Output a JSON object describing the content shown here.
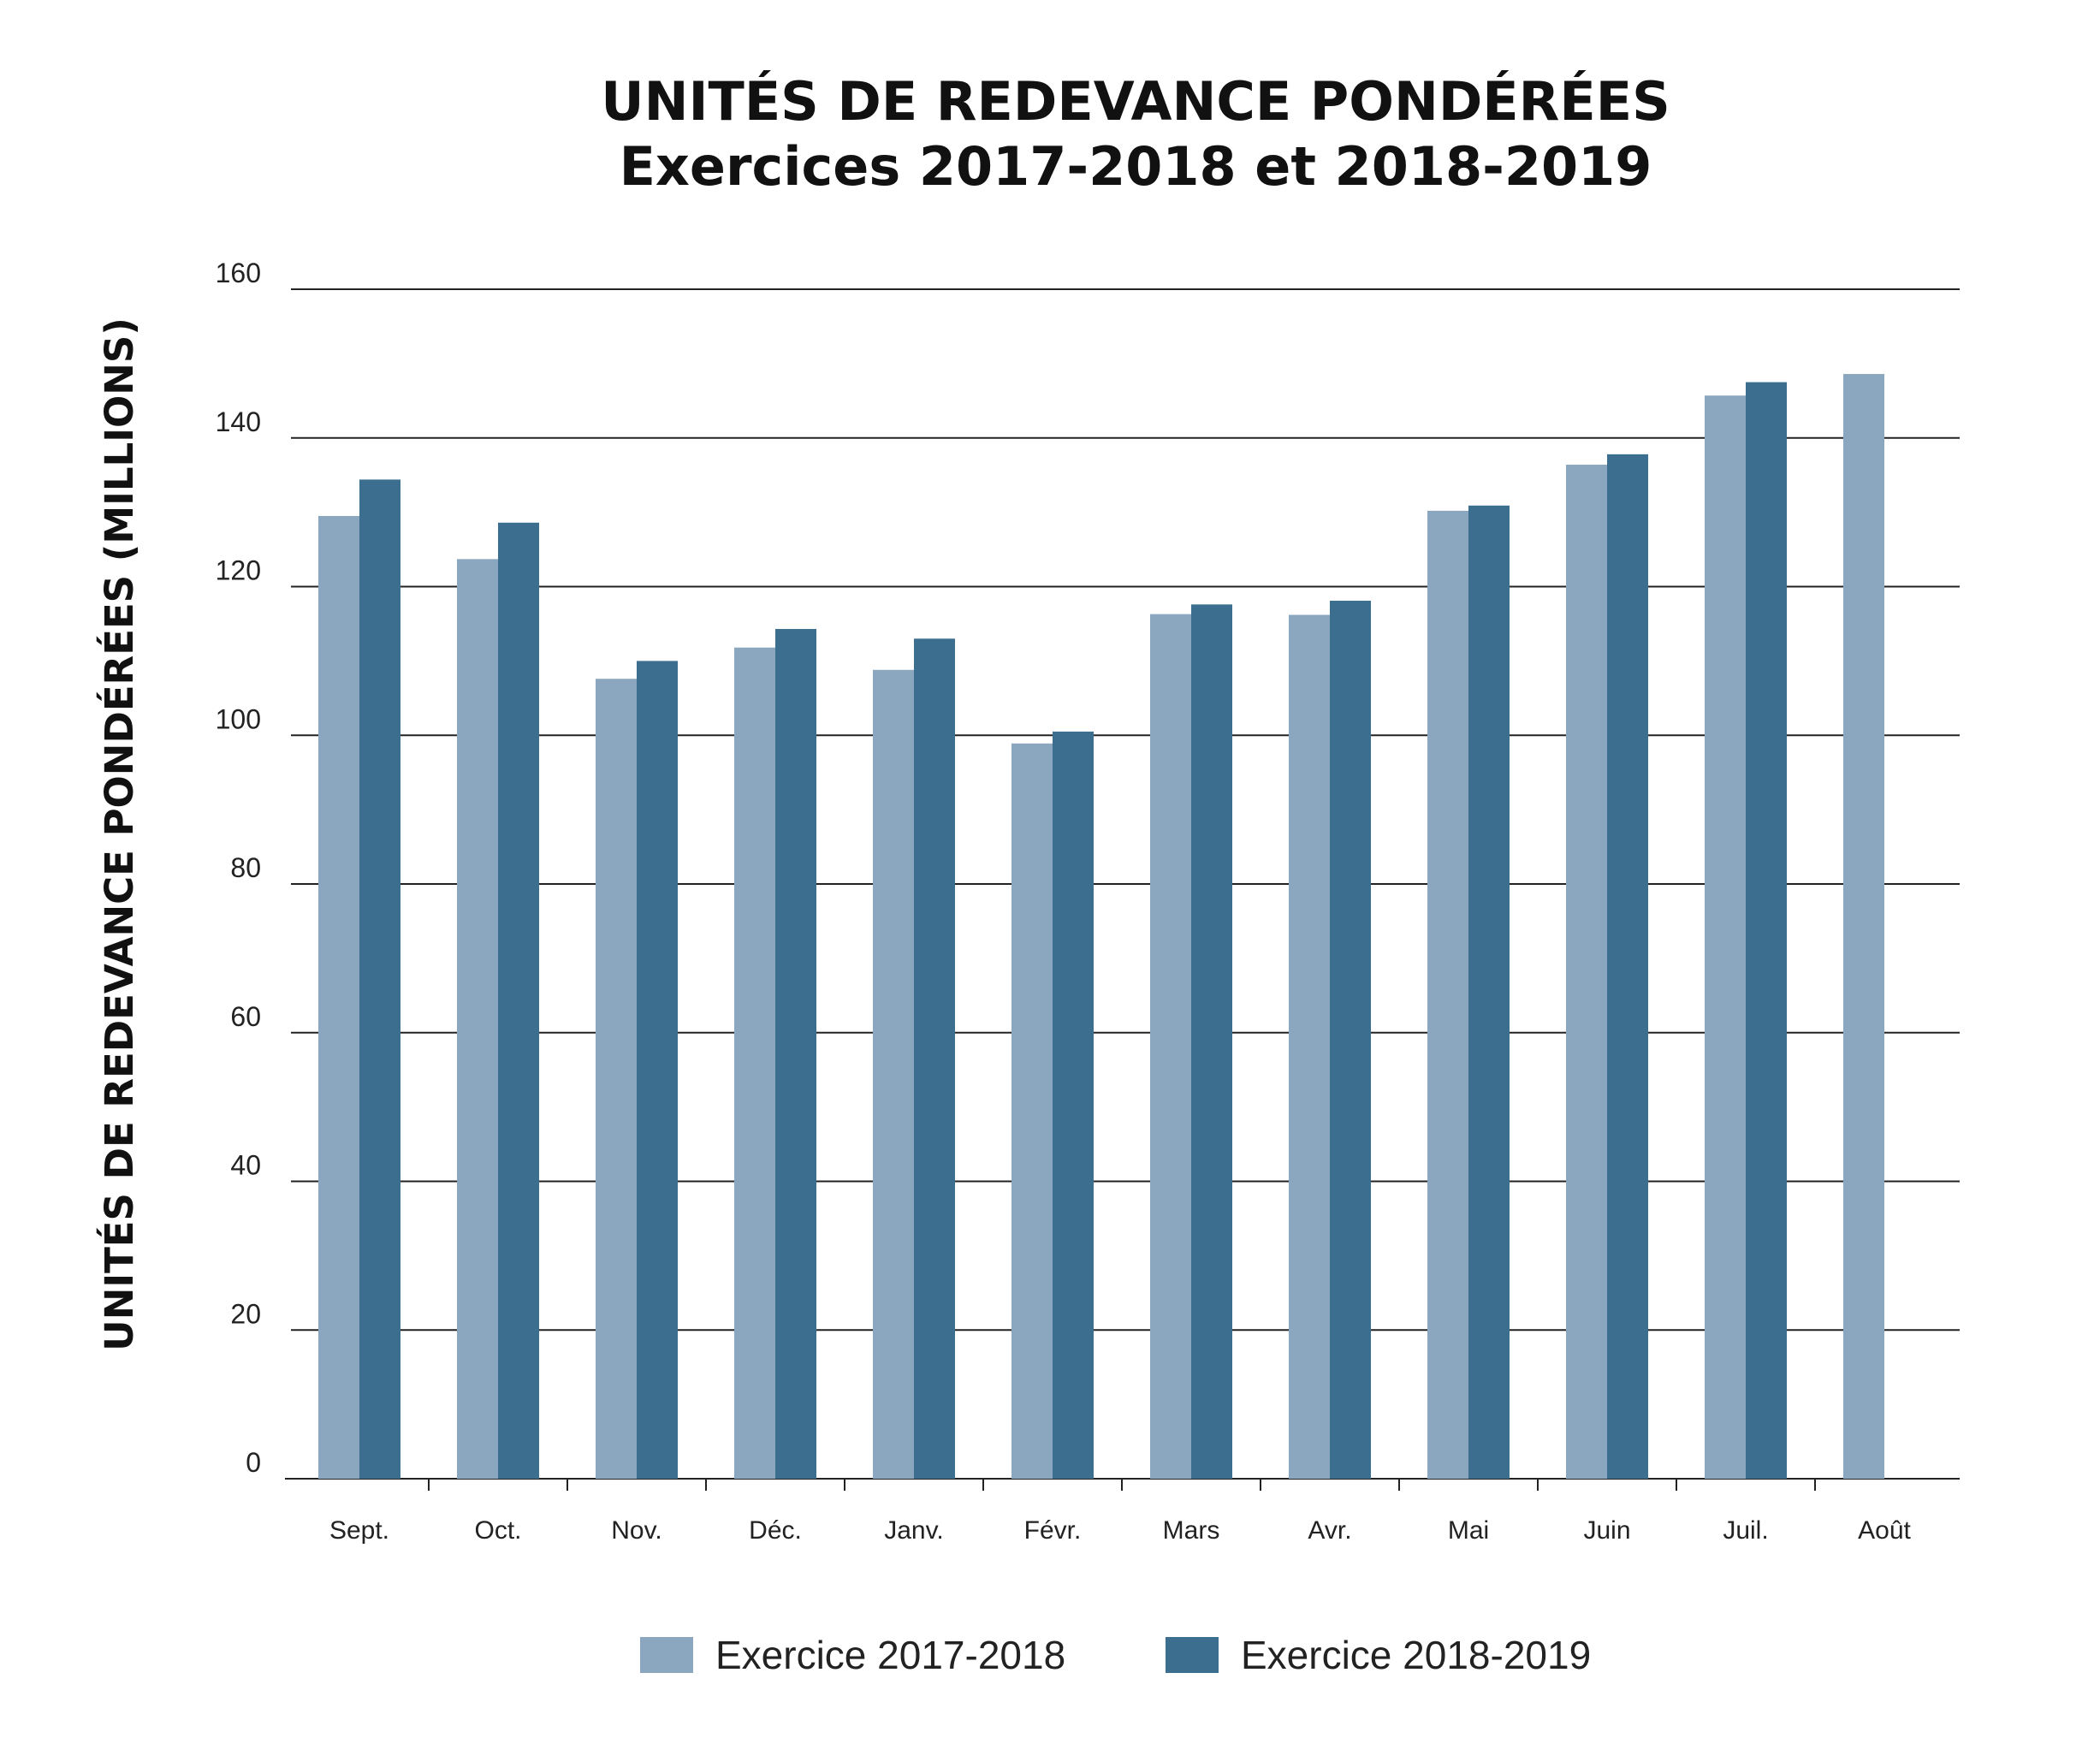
{
  "chart_data": {
    "type": "bar",
    "title": "UNITÉS DE REDEVANCE PONDÉRÉES",
    "subtitle": "Exercices 2017-2018 et 2018-2019",
    "ylabel": "UNITÉS DE REDEVANCE PONDÉRÉES (MILLIONS)",
    "xlabel": "",
    "ylim": [
      0,
      160
    ],
    "yticks": [
      0,
      20,
      40,
      60,
      80,
      100,
      120,
      140,
      160
    ],
    "grid": "horizontal",
    "legend_position": "bottom-center",
    "categories": [
      "Sept.",
      "Oct.",
      "Nov.",
      "Déc.",
      "Janv.",
      "Févr.",
      "Mars",
      "Avr.",
      "Mai",
      "Juin",
      "Juil.",
      "Août"
    ],
    "series": [
      {
        "name": "Exercice 2017-2018",
        "color": "#8ba7bf",
        "values": [
          129.5,
          123.7,
          107.6,
          111.8,
          108.8,
          98.9,
          116.3,
          116.2,
          130.2,
          136.4,
          145.7,
          148.6
        ]
      },
      {
        "name": "Exercice 2018-2019",
        "color": "#3c6e8f",
        "values": [
          134.4,
          128.6,
          110.0,
          114.3,
          113.0,
          100.5,
          117.6,
          118.1,
          130.9,
          137.8,
          147.5,
          null
        ]
      }
    ]
  }
}
